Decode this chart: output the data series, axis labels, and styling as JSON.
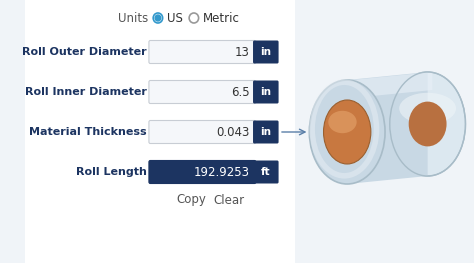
{
  "bg_color": "#f0f4f8",
  "title_units": "Units",
  "radio_us": "US",
  "radio_metric": "Metric",
  "fields": [
    {
      "label": "Roll Outer Diameter",
      "value": "13",
      "unit": "in",
      "dark": false
    },
    {
      "label": "Roll Inner Diameter",
      "value": "6.5",
      "unit": "in",
      "dark": false
    },
    {
      "label": "Material Thickness",
      "value": "0.043",
      "unit": "in",
      "dark": false
    },
    {
      "label": "Roll Length",
      "value": "192.9253",
      "unit": "ft",
      "dark": true
    }
  ],
  "btn_copy": "Copy",
  "btn_clear": "Clear",
  "dark_navy": "#1c3461",
  "input_bg": "#f5f7fa",
  "input_border": "#c8cdd4",
  "label_color": "#1c3461",
  "unit_bg": "#1c3461",
  "unit_color": "#ffffff",
  "arrow_color": "#5a7fa8",
  "roll_outer_color": "#c8d8e4",
  "roll_outer_edge": "#a8bcc8",
  "roll_face_color": "#dce8f0",
  "roll_inner_color": "#c87840",
  "roll_inner_light": "#e8a870",
  "roll_inner_shadow": "#a05820"
}
